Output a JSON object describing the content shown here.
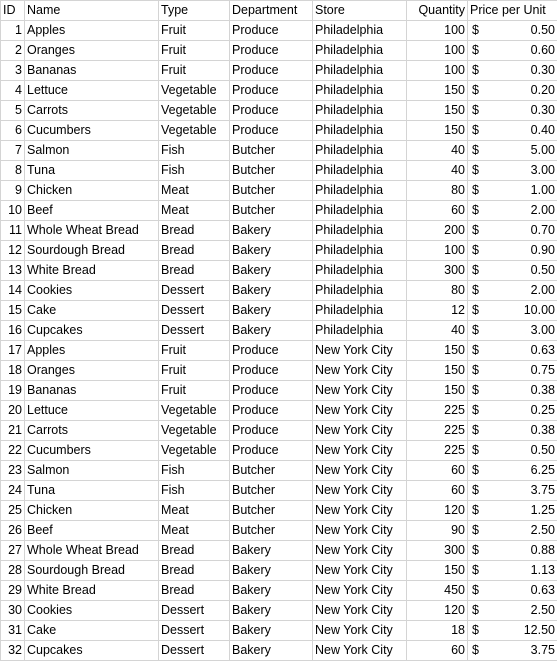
{
  "headers": {
    "id": "ID",
    "name": "Name",
    "type": "Type",
    "department": "Department",
    "store": "Store",
    "quantity": "Quantity",
    "price": "Price per Unit"
  },
  "currency_symbol": "$",
  "rows": [
    {
      "id": "1",
      "name": "Apples",
      "type": "Fruit",
      "department": "Produce",
      "store": "Philadelphia",
      "quantity": "100",
      "price": "0.50"
    },
    {
      "id": "2",
      "name": "Oranges",
      "type": "Fruit",
      "department": "Produce",
      "store": "Philadelphia",
      "quantity": "100",
      "price": "0.60"
    },
    {
      "id": "3",
      "name": "Bananas",
      "type": "Fruit",
      "department": "Produce",
      "store": "Philadelphia",
      "quantity": "100",
      "price": "0.30"
    },
    {
      "id": "4",
      "name": "Lettuce",
      "type": "Vegetable",
      "department": "Produce",
      "store": "Philadelphia",
      "quantity": "150",
      "price": "0.20"
    },
    {
      "id": "5",
      "name": "Carrots",
      "type": "Vegetable",
      "department": "Produce",
      "store": "Philadelphia",
      "quantity": "150",
      "price": "0.30"
    },
    {
      "id": "6",
      "name": "Cucumbers",
      "type": "Vegetable",
      "department": "Produce",
      "store": "Philadelphia",
      "quantity": "150",
      "price": "0.40"
    },
    {
      "id": "7",
      "name": "Salmon",
      "type": "Fish",
      "department": "Butcher",
      "store": "Philadelphia",
      "quantity": "40",
      "price": "5.00"
    },
    {
      "id": "8",
      "name": "Tuna",
      "type": "Fish",
      "department": "Butcher",
      "store": "Philadelphia",
      "quantity": "40",
      "price": "3.00"
    },
    {
      "id": "9",
      "name": "Chicken",
      "type": "Meat",
      "department": "Butcher",
      "store": "Philadelphia",
      "quantity": "80",
      "price": "1.00"
    },
    {
      "id": "10",
      "name": "Beef",
      "type": "Meat",
      "department": "Butcher",
      "store": "Philadelphia",
      "quantity": "60",
      "price": "2.00"
    },
    {
      "id": "11",
      "name": "Whole Wheat Bread",
      "type": "Bread",
      "department": "Bakery",
      "store": "Philadelphia",
      "quantity": "200",
      "price": "0.70"
    },
    {
      "id": "12",
      "name": "Sourdough Bread",
      "type": "Bread",
      "department": "Bakery",
      "store": "Philadelphia",
      "quantity": "100",
      "price": "0.90"
    },
    {
      "id": "13",
      "name": "White Bread",
      "type": "Bread",
      "department": "Bakery",
      "store": "Philadelphia",
      "quantity": "300",
      "price": "0.50"
    },
    {
      "id": "14",
      "name": "Cookies",
      "type": "Dessert",
      "department": "Bakery",
      "store": "Philadelphia",
      "quantity": "80",
      "price": "2.00"
    },
    {
      "id": "15",
      "name": "Cake",
      "type": "Dessert",
      "department": "Bakery",
      "store": "Philadelphia",
      "quantity": "12",
      "price": "10.00"
    },
    {
      "id": "16",
      "name": "Cupcakes",
      "type": "Dessert",
      "department": "Bakery",
      "store": "Philadelphia",
      "quantity": "40",
      "price": "3.00"
    },
    {
      "id": "17",
      "name": "Apples",
      "type": "Fruit",
      "department": "Produce",
      "store": "New York City",
      "quantity": "150",
      "price": "0.63"
    },
    {
      "id": "18",
      "name": "Oranges",
      "type": "Fruit",
      "department": "Produce",
      "store": "New York City",
      "quantity": "150",
      "price": "0.75"
    },
    {
      "id": "19",
      "name": "Bananas",
      "type": "Fruit",
      "department": "Produce",
      "store": "New York City",
      "quantity": "150",
      "price": "0.38"
    },
    {
      "id": "20",
      "name": "Lettuce",
      "type": "Vegetable",
      "department": "Produce",
      "store": "New York City",
      "quantity": "225",
      "price": "0.25"
    },
    {
      "id": "21",
      "name": "Carrots",
      "type": "Vegetable",
      "department": "Produce",
      "store": "New York City",
      "quantity": "225",
      "price": "0.38"
    },
    {
      "id": "22",
      "name": "Cucumbers",
      "type": "Vegetable",
      "department": "Produce",
      "store": "New York City",
      "quantity": "225",
      "price": "0.50"
    },
    {
      "id": "23",
      "name": "Salmon",
      "type": "Fish",
      "department": "Butcher",
      "store": "New York City",
      "quantity": "60",
      "price": "6.25"
    },
    {
      "id": "24",
      "name": "Tuna",
      "type": "Fish",
      "department": "Butcher",
      "store": "New York City",
      "quantity": "60",
      "price": "3.75"
    },
    {
      "id": "25",
      "name": "Chicken",
      "type": "Meat",
      "department": "Butcher",
      "store": "New York City",
      "quantity": "120",
      "price": "1.25"
    },
    {
      "id": "26",
      "name": "Beef",
      "type": "Meat",
      "department": "Butcher",
      "store": "New York City",
      "quantity": "90",
      "price": "2.50"
    },
    {
      "id": "27",
      "name": "Whole Wheat Bread",
      "type": "Bread",
      "department": "Bakery",
      "store": "New York City",
      "quantity": "300",
      "price": "0.88"
    },
    {
      "id": "28",
      "name": "Sourdough Bread",
      "type": "Bread",
      "department": "Bakery",
      "store": "New York City",
      "quantity": "150",
      "price": "1.13"
    },
    {
      "id": "29",
      "name": "White Bread",
      "type": "Bread",
      "department": "Bakery",
      "store": "New York City",
      "quantity": "450",
      "price": "0.63"
    },
    {
      "id": "30",
      "name": "Cookies",
      "type": "Dessert",
      "department": "Bakery",
      "store": "New York City",
      "quantity": "120",
      "price": "2.50"
    },
    {
      "id": "31",
      "name": "Cake",
      "type": "Dessert",
      "department": "Bakery",
      "store": "New York City",
      "quantity": "18",
      "price": "12.50"
    },
    {
      "id": "32",
      "name": "Cupcakes",
      "type": "Dessert",
      "department": "Bakery",
      "store": "New York City",
      "quantity": "60",
      "price": "3.75"
    }
  ]
}
